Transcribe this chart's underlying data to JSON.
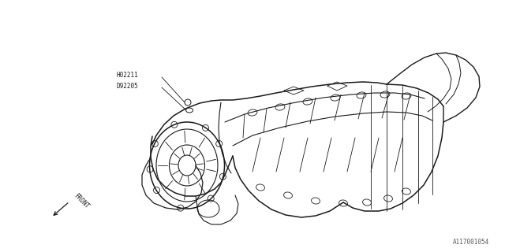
{
  "bg_color": "#ffffff",
  "line_color": "#1a1a1a",
  "label1": "H02211",
  "label2": "D92205",
  "front_label": "FRONT",
  "part_id": "A117001054",
  "fig_width": 6.4,
  "fig_height": 3.2,
  "dpi": 100,
  "lw_main": 0.9,
  "lw_detail": 0.6
}
